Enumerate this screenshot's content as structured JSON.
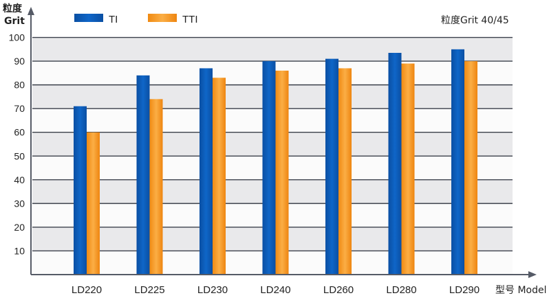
{
  "chart_data": {
    "type": "bar",
    "categories": [
      "LD220",
      "LD225",
      "LD230",
      "LD240",
      "LD260",
      "LD280",
      "LD290"
    ],
    "series": [
      {
        "name": "TI",
        "values": [
          71,
          84,
          87,
          90,
          91,
          93.5,
          95
        ],
        "color": "#0a5cb8"
      },
      {
        "name": "TTI",
        "values": [
          60,
          74,
          83,
          86,
          87,
          89,
          90
        ],
        "color": "#f7941d"
      }
    ],
    "y_ticks": [
      10,
      20,
      30,
      40,
      50,
      60,
      70,
      80,
      90,
      100
    ],
    "ylim": [
      0,
      110
    ],
    "grid": true,
    "legend_position": "top-left",
    "ylabel_line1": "粒度",
    "ylabel_line2": "Grit",
    "xlabel": "型号 Model",
    "annotation": "粒度Grit 40/45",
    "band_colors": {
      "dark": "#e9e9eb",
      "light": "#fbfbfb"
    }
  }
}
